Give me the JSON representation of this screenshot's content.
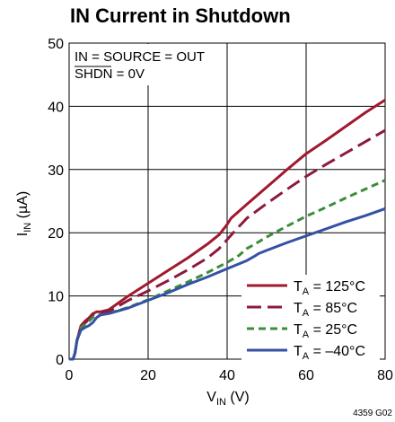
{
  "chart_data": {
    "type": "line",
    "title": "IN Current in Shutdown",
    "xlabel": {
      "main": "V",
      "sub": "IN",
      "unit": " (V)"
    },
    "ylabel": {
      "main": "I",
      "sub": "IN",
      "unit": " (µA)"
    },
    "xlim": [
      0,
      80
    ],
    "ylim": [
      0,
      50
    ],
    "xticks": [
      0,
      20,
      40,
      60,
      80
    ],
    "yticks": [
      0,
      10,
      20,
      30,
      40,
      50
    ],
    "grid": true,
    "conditions": [
      "IN = SOURCE = OUT",
      "SHDN = 0V"
    ],
    "legend_position": "bottom-right",
    "series": [
      {
        "name": "125°C",
        "color": "#a0192c",
        "dash": "solid",
        "x": [
          0,
          1,
          1.5,
          2,
          3,
          4,
          5,
          6,
          7,
          8,
          10,
          15,
          20,
          25,
          30,
          35,
          38,
          40,
          41,
          45,
          50,
          55,
          60,
          65,
          70,
          75,
          80
        ],
        "y": [
          0,
          0,
          1,
          3,
          5.3,
          6,
          6.5,
          7.2,
          7.5,
          7.5,
          7.8,
          10,
          12,
          14,
          16,
          18.2,
          19.7,
          21.3,
          22.3,
          24.5,
          27.2,
          29.9,
          32.5,
          34.6,
          36.8,
          39,
          41
        ]
      },
      {
        "name": "85°C",
        "color": "#8c1a3c",
        "dash": "long",
        "x": [
          0,
          1,
          1.5,
          2,
          3,
          4,
          5,
          6,
          7,
          8,
          10,
          15,
          20,
          25,
          30,
          35,
          38,
          40,
          42,
          45,
          50,
          55,
          60,
          65,
          70,
          75,
          80
        ],
        "y": [
          0,
          0,
          1,
          3,
          5,
          5.7,
          6.3,
          7,
          7.3,
          7.3,
          7.5,
          9.3,
          10.8,
          12.4,
          14.1,
          16,
          17.5,
          18.9,
          20.3,
          22.3,
          24.6,
          26.8,
          28.9,
          30.8,
          32.6,
          34.4,
          36.2
        ]
      },
      {
        "name": "25°C",
        "color": "#3c8c3c",
        "dash": "short",
        "x": [
          0,
          1,
          1.5,
          2,
          3,
          4,
          5,
          6,
          7,
          8,
          10,
          15,
          20,
          25,
          30,
          35,
          40,
          43,
          45,
          47,
          50,
          55,
          60,
          65,
          70,
          75,
          80
        ],
        "y": [
          0,
          0,
          1,
          3,
          5,
          5.5,
          6,
          6.6,
          7,
          7,
          7.2,
          8.2,
          9.4,
          10.8,
          12.2,
          13.7,
          15.3,
          16.4,
          17.5,
          18.2,
          19.3,
          21,
          22.6,
          24,
          25.5,
          26.9,
          28.3
        ]
      },
      {
        "name": "–40°C",
        "color": "#3452a4",
        "dash": "solid",
        "x": [
          0,
          1,
          1.5,
          2,
          3,
          4,
          5,
          6,
          7,
          8,
          10,
          15,
          20,
          25,
          30,
          35,
          40,
          45,
          47,
          48,
          50,
          55,
          60,
          65,
          70,
          75,
          80
        ],
        "y": [
          0,
          0,
          1,
          3,
          4.6,
          5,
          5.3,
          5.8,
          6.6,
          7,
          7.2,
          8.1,
          9.3,
          10.5,
          11.8,
          13,
          14.3,
          15.6,
          16.3,
          16.7,
          17.2,
          18.4,
          19.5,
          20.6,
          21.7,
          22.7,
          23.8
        ]
      }
    ],
    "legend_prefix": {
      "main": "T",
      "sub": "A",
      "eq": " = "
    }
  },
  "figure_code": "4359 G02"
}
